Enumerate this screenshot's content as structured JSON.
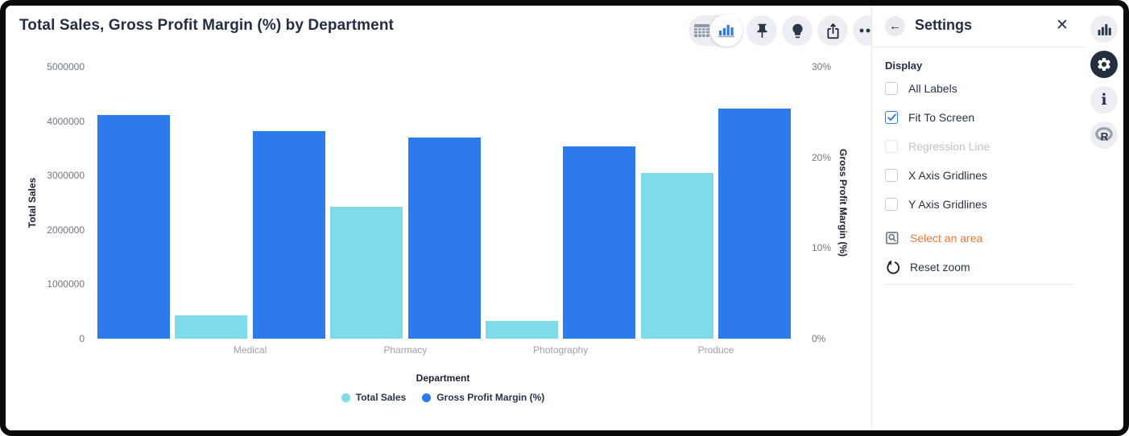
{
  "window": {
    "title": "Total Sales, Gross Profit Margin (%) by Department"
  },
  "colors": {
    "total_sales": "#7EDCE8",
    "gross_profit_margin": "#2D7AED",
    "accent_orange": "#F0783C",
    "dark_navy": "#273349",
    "icon_gray": "#8f99a6"
  },
  "toolbar": {
    "icons": [
      "table-view-icon",
      "chart-view-icon",
      "pin-icon",
      "lightbulb-icon",
      "export-icon",
      "more-options-icon"
    ],
    "active_view": "chart-view"
  },
  "chart_data": {
    "type": "bar",
    "title": "Total Sales, Gross Profit Margin (%) by Department",
    "xlabel": "Department",
    "ylabel_left": "Total Sales",
    "ylabel_right": "Gross Profit Margin (%)",
    "categories": [
      "Medical",
      "Pharmacy",
      "Photography",
      "Produce"
    ],
    "series": [
      {
        "name": "Total Sales",
        "axis": "left",
        "color": "#7EDCE8",
        "values": [
          430000,
          2430000,
          330000,
          3050000
        ]
      },
      {
        "name": "Gross Profit Margin (%)",
        "axis": "right",
        "color": "#2D7AED",
        "values": [
          22.9,
          22.2,
          21.2,
          25.4
        ]
      }
    ],
    "leading_partial_bar": {
      "series": "Gross Profit Margin (%)",
      "value": 24.7,
      "note": "left-most bar, category label out of zoomed view"
    },
    "left_axis": {
      "range": [
        0,
        5000000
      ],
      "ticks": [
        "5000000",
        "4000000",
        "3000000",
        "2000000",
        "1000000",
        "0"
      ]
    },
    "right_axis": {
      "range": [
        0,
        30
      ],
      "ticks": [
        "30%",
        "20%",
        "10%",
        "0%"
      ]
    },
    "gridlines": {
      "x": false,
      "y": false
    },
    "legend": {
      "position": "bottom",
      "entries": [
        "Total Sales",
        "Gross Profit Margin (%)"
      ]
    }
  },
  "settings_panel": {
    "title": "Settings",
    "section": "Display",
    "checkboxes": [
      {
        "label": "All Labels",
        "checked": false,
        "disabled": false
      },
      {
        "label": "Fit To Screen",
        "checked": true,
        "disabled": false
      },
      {
        "label": "Regression Line",
        "checked": false,
        "disabled": true
      },
      {
        "label": "X Axis Gridlines",
        "checked": false,
        "disabled": false
      },
      {
        "label": "Y Axis Gridlines",
        "checked": false,
        "disabled": false
      }
    ],
    "actions": [
      {
        "label": "Select an area",
        "icon": "select-area-icon",
        "color": "#F0783C"
      },
      {
        "label": "Reset zoom",
        "icon": "reset-zoom-icon",
        "color": "#273349"
      }
    ]
  },
  "right_rail": {
    "items": [
      {
        "icon": "bar-chart-icon",
        "active": false
      },
      {
        "icon": "settings-gear-icon",
        "active": true
      },
      {
        "icon": "info-icon",
        "active": false
      },
      {
        "icon": "r-logo-icon",
        "active": false
      }
    ]
  }
}
